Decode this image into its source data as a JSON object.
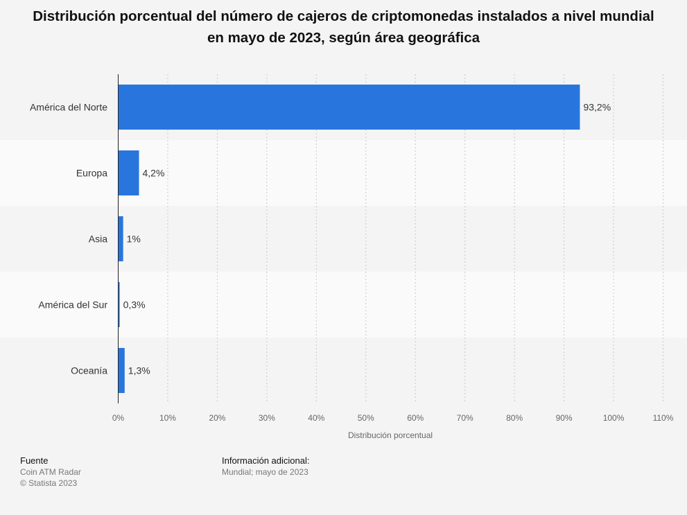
{
  "chart_data": {
    "type": "bar",
    "orientation": "horizontal",
    "title": "Distribución porcentual del número de cajeros de criptomonedas instalados a nivel mundial en mayo de 2023, según área geográfica",
    "categories": [
      "América del Norte",
      "Europa",
      "Asia",
      "América del Sur",
      "Oceanía"
    ],
    "values": [
      93.2,
      4.2,
      1,
      0.3,
      1.3
    ],
    "value_labels": [
      "93,2%",
      "4,2%",
      "1%",
      "0,3%",
      "1,3%"
    ],
    "xlabel": "Distribución porcentual",
    "ylabel": "",
    "xlim": [
      0,
      110
    ],
    "xticks": [
      0,
      10,
      20,
      30,
      40,
      50,
      60,
      70,
      80,
      90,
      100,
      110
    ],
    "xtick_labels": [
      "0%",
      "10%",
      "20%",
      "30%",
      "40%",
      "50%",
      "60%",
      "70%",
      "80%",
      "90%",
      "100%",
      "110%"
    ],
    "grid": true,
    "bar_color": "#2876dd"
  },
  "footer": {
    "source_heading": "Fuente",
    "source_name": "Coin ATM Radar",
    "copyright": "© Statista 2023",
    "info_heading": "Información adicional:",
    "info_text": "Mundial; mayo de 2023"
  }
}
